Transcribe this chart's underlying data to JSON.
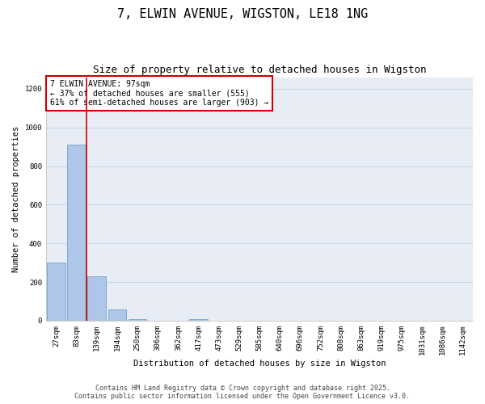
{
  "title": "7, ELWIN AVENUE, WIGSTON, LE18 1NG",
  "subtitle": "Size of property relative to detached houses in Wigston",
  "xlabel": "Distribution of detached houses by size in Wigston",
  "ylabel": "Number of detached properties",
  "bar_labels": [
    "27sqm",
    "83sqm",
    "139sqm",
    "194sqm",
    "250sqm",
    "306sqm",
    "362sqm",
    "417sqm",
    "473sqm",
    "529sqm",
    "585sqm",
    "640sqm",
    "696sqm",
    "752sqm",
    "808sqm",
    "863sqm",
    "919sqm",
    "975sqm",
    "1031sqm",
    "1086sqm",
    "1142sqm"
  ],
  "bar_values": [
    300,
    910,
    230,
    60,
    10,
    0,
    0,
    10,
    0,
    0,
    0,
    0,
    0,
    0,
    0,
    0,
    0,
    0,
    0,
    0,
    0
  ],
  "bar_color": "#aec6e8",
  "bar_edge_color": "#7aaad0",
  "annotation_text": "7 ELWIN AVENUE: 97sqm\n← 37% of detached houses are smaller (555)\n61% of semi-detached houses are larger (903) →",
  "annotation_box_color": "#ffffff",
  "annotation_box_edge_color": "#cc0000",
  "vline_color": "#cc0000",
  "ylim": [
    0,
    1260
  ],
  "yticks": [
    0,
    200,
    400,
    600,
    800,
    1000,
    1200
  ],
  "grid_color": "#ccd5e8",
  "background_color": "#e8edf5",
  "footer_text": "Contains HM Land Registry data © Crown copyright and database right 2025.\nContains public sector information licensed under the Open Government Licence v3.0.",
  "title_fontsize": 11,
  "subtitle_fontsize": 9,
  "axis_label_fontsize": 7.5,
  "tick_fontsize": 6.5,
  "annotation_fontsize": 7,
  "footer_fontsize": 6
}
